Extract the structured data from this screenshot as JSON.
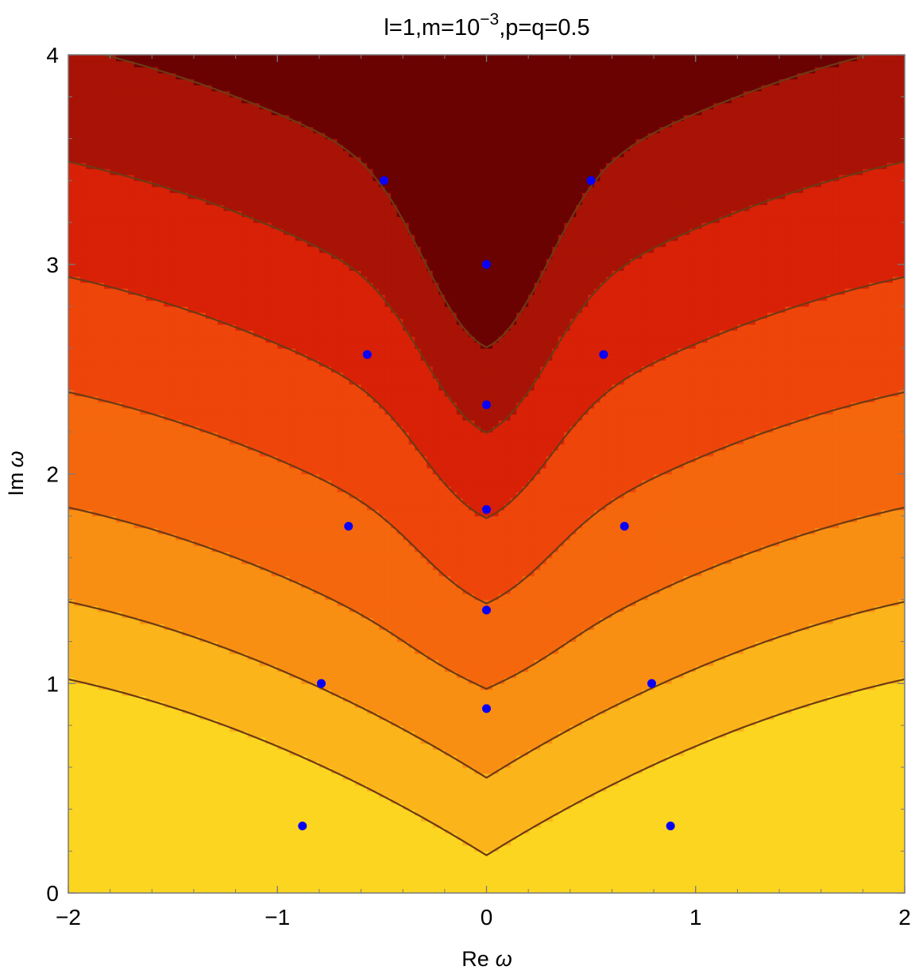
{
  "chart_data": {
    "type": "contour",
    "title": "l=1,m=10",
    "title_exponent": "−3",
    "title_suffix": ",p=q=0.5",
    "xlabel_main": "Re",
    "xlabel_symbol": "ω",
    "ylabel_main": "Im",
    "ylabel_symbol": "ω",
    "xlim": [
      -2,
      2
    ],
    "ylim": [
      0,
      4
    ],
    "x_ticks": [
      -2,
      -1,
      0,
      1,
      2
    ],
    "x_tick_labels": [
      "−2",
      "−1",
      "0",
      "1",
      "2"
    ],
    "y_ticks": [
      0,
      1,
      2,
      3,
      4
    ],
    "y_tick_labels": [
      "0",
      "1",
      "2",
      "3",
      "4"
    ],
    "colorscale": [
      "#fcd520",
      "#fbb41a",
      "#f98f12",
      "#f5670c",
      "#ee450a",
      "#d82106",
      "#a81306",
      "#6a0202"
    ],
    "contour_line_color": "#6d3a14",
    "marker_color": "#0a00f5",
    "points": [
      {
        "x": -0.88,
        "y": 0.32
      },
      {
        "x": 0.88,
        "y": 0.32
      },
      {
        "x": -0.79,
        "y": 1.0
      },
      {
        "x": 0.79,
        "y": 1.0
      },
      {
        "x": 0.0,
        "y": 0.88
      },
      {
        "x": 0.0,
        "y": 1.35
      },
      {
        "x": -0.66,
        "y": 1.75
      },
      {
        "x": 0.66,
        "y": 1.75
      },
      {
        "x": 0.0,
        "y": 1.83
      },
      {
        "x": 0.0,
        "y": 2.33
      },
      {
        "x": -0.57,
        "y": 2.57
      },
      {
        "x": 0.56,
        "y": 2.57
      },
      {
        "x": 0.0,
        "y": 3.0
      },
      {
        "x": -0.49,
        "y": 3.4
      },
      {
        "x": 0.5,
        "y": 3.4
      }
    ]
  }
}
